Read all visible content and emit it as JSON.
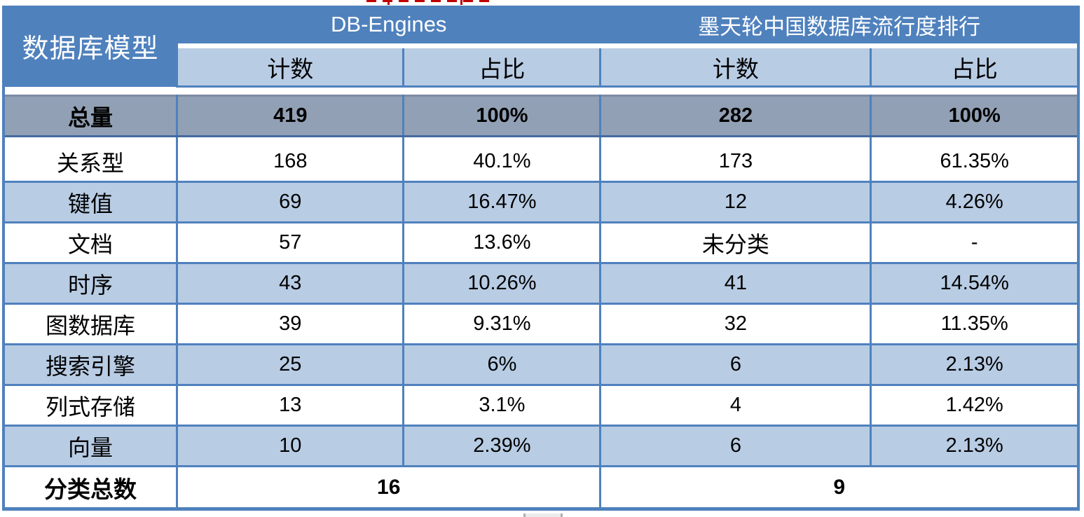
{
  "colors": {
    "header_blue": "#4f81bd",
    "light_blue": "#b8cce4",
    "total_row_gray": "#91a0b4",
    "border_blue": "#4f81bd",
    "header_text": "#ffffff",
    "body_text": "#000000",
    "annotation_red": "#c00000"
  },
  "table": {
    "corner_header": "数据库模型",
    "group_headers": [
      {
        "label": "DB-Engines"
      },
      {
        "label": "墨天轮中国数据库流行度排行"
      }
    ],
    "sub_headers": [
      "计数",
      "占比",
      "计数",
      "占比"
    ],
    "total_row": {
      "label": "总量",
      "db_count": "419",
      "db_share": "100%",
      "mo_count": "282",
      "mo_share": "100%"
    },
    "rows": [
      {
        "label": "关系型",
        "db_count": "168",
        "db_share": "40.1%",
        "mo_count": "173",
        "mo_share": "61.35%"
      },
      {
        "label": "键值",
        "db_count": "69",
        "db_share": "16.47%",
        "mo_count": "12",
        "mo_share": "4.26%"
      },
      {
        "label": "文档",
        "db_count": "57",
        "db_share": "13.6%",
        "mo_count": "未分类",
        "mo_share": "-"
      },
      {
        "label": "时序",
        "db_count": "43",
        "db_share": "10.26%",
        "mo_count": "41",
        "mo_share": "14.54%"
      },
      {
        "label": "图数据库",
        "db_count": "39",
        "db_share": "9.31%",
        "mo_count": "32",
        "mo_share": "11.35%"
      },
      {
        "label": "搜索引擎",
        "db_count": "25",
        "db_share": "6%",
        "mo_count": "6",
        "mo_share": "2.13%"
      },
      {
        "label": "列式存储",
        "db_count": "13",
        "db_share": "3.1%",
        "mo_count": "4",
        "mo_share": "1.42%"
      },
      {
        "label": "向量",
        "db_count": "10",
        "db_share": "2.39%",
        "mo_count": "6",
        "mo_share": "2.13%"
      }
    ],
    "category_totals": {
      "label": "分类总数",
      "db_total": "16",
      "mo_total": "9"
    }
  }
}
